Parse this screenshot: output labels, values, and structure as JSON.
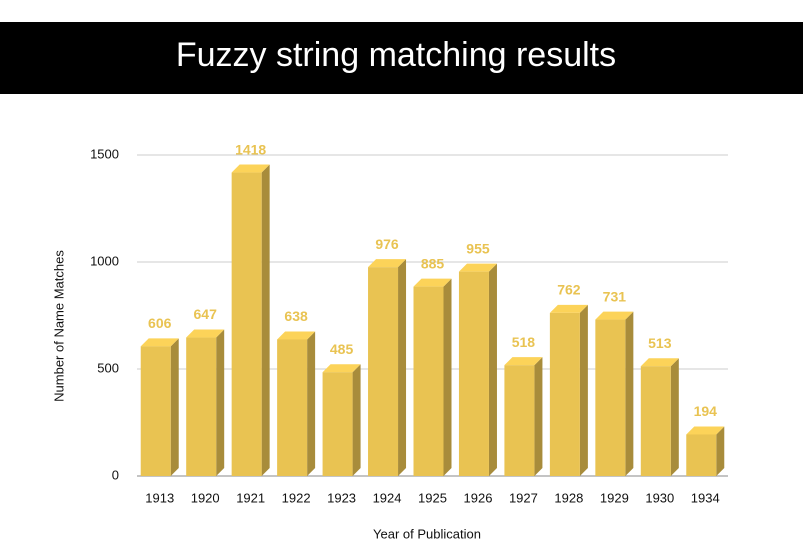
{
  "chart_data": {
    "type": "bar3d",
    "title": "Fuzzy string matching results",
    "x_label": "Year of Publication",
    "y_label": "Number of Name Matches",
    "categories": [
      "1913",
      "1920",
      "1921",
      "1922",
      "1923",
      "1924",
      "1925",
      "1926",
      "1927",
      "1928",
      "1929",
      "1930",
      "1934"
    ],
    "values": [
      606,
      647,
      1418,
      638,
      485,
      976,
      885,
      955,
      518,
      762,
      731,
      513,
      194
    ],
    "color": "#e9c352",
    "ylim": [
      0,
      1500
    ],
    "yticks": [
      0,
      500,
      1000,
      1500
    ],
    "grid": true
  }
}
